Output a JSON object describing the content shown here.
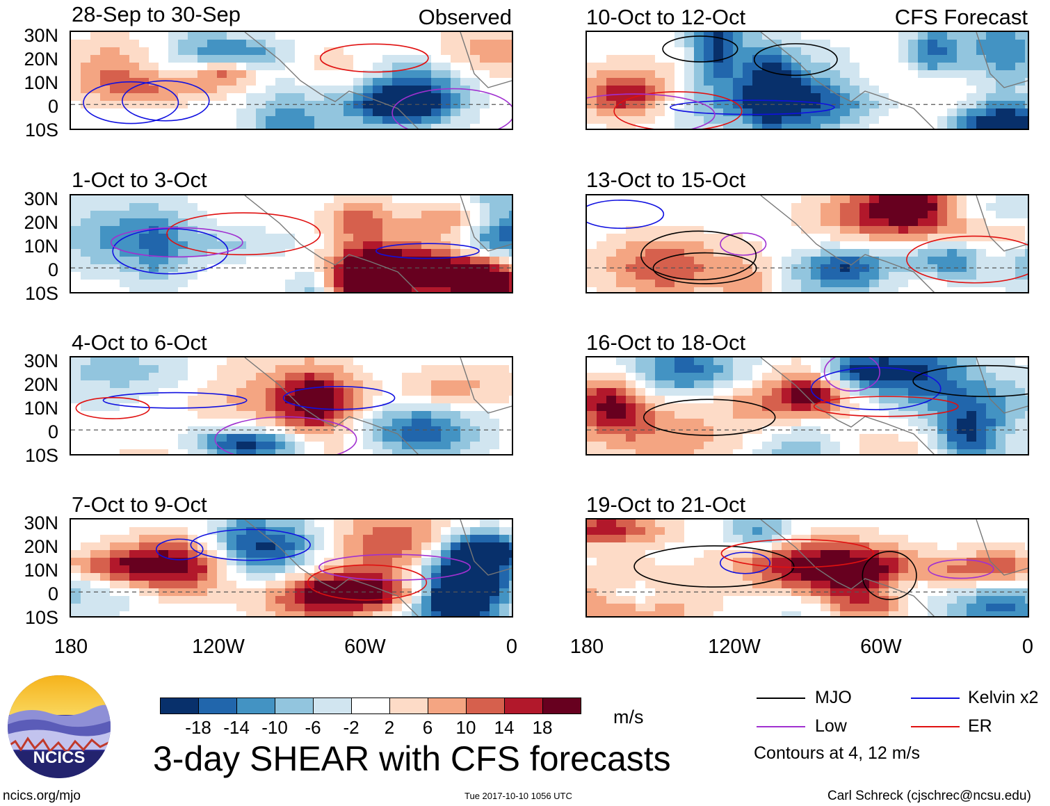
{
  "chart_data": {
    "type": "heatmap",
    "title": "3-day SHEAR with CFS forecasts",
    "units": "m/s",
    "lat_ticks": [
      "30N",
      "20N",
      "10N",
      "0",
      "10S"
    ],
    "lon_ticks": [
      "180",
      "120W",
      "60W",
      "0"
    ],
    "observed_label": "Observed",
    "forecast_label": "CFS Forecast",
    "panels": [
      {
        "id": "p1",
        "column": "observed",
        "title": "28-Sep to 30-Sep"
      },
      {
        "id": "p2",
        "column": "observed",
        "title": "1-Oct to 3-Oct"
      },
      {
        "id": "p3",
        "column": "observed",
        "title": "4-Oct to 6-Oct"
      },
      {
        "id": "p4",
        "column": "observed",
        "title": "7-Oct to 9-Oct"
      },
      {
        "id": "p5",
        "column": "forecast",
        "title": "10-Oct to 12-Oct"
      },
      {
        "id": "p6",
        "column": "forecast",
        "title": "13-Oct to 15-Oct"
      },
      {
        "id": "p7",
        "column": "forecast",
        "title": "16-Oct to 18-Oct"
      },
      {
        "id": "p8",
        "column": "forecast",
        "title": "19-Oct to 21-Oct"
      }
    ],
    "colorbar": {
      "labels": [
        "-18",
        "-14",
        "-10",
        "-6",
        "-2",
        "2",
        "6",
        "10",
        "14",
        "18"
      ],
      "colors": [
        "#08306b",
        "#2166ac",
        "#4393c3",
        "#92c5de",
        "#d1e5f0",
        "#ffffff",
        "#fddbc7",
        "#f4a582",
        "#d6604d",
        "#b2182b",
        "#67001f"
      ]
    },
    "legend": {
      "items": [
        {
          "label": "MJO",
          "color": "#000000"
        },
        {
          "label": "Kelvin x2",
          "color": "#1010e0"
        },
        {
          "label": "Low",
          "color": "#a030d0"
        },
        {
          "label": "ER",
          "color": "#e01010"
        }
      ],
      "contour_note": "Contours at 4, 12 m/s"
    }
  },
  "footer": {
    "logo_text": "NCICS",
    "site": "ncics.org/mjo",
    "timestamp": "Tue 2017-10-10 1056 UTC",
    "author": "Carl Schreck (cjschrec@ncsu.edu)"
  }
}
